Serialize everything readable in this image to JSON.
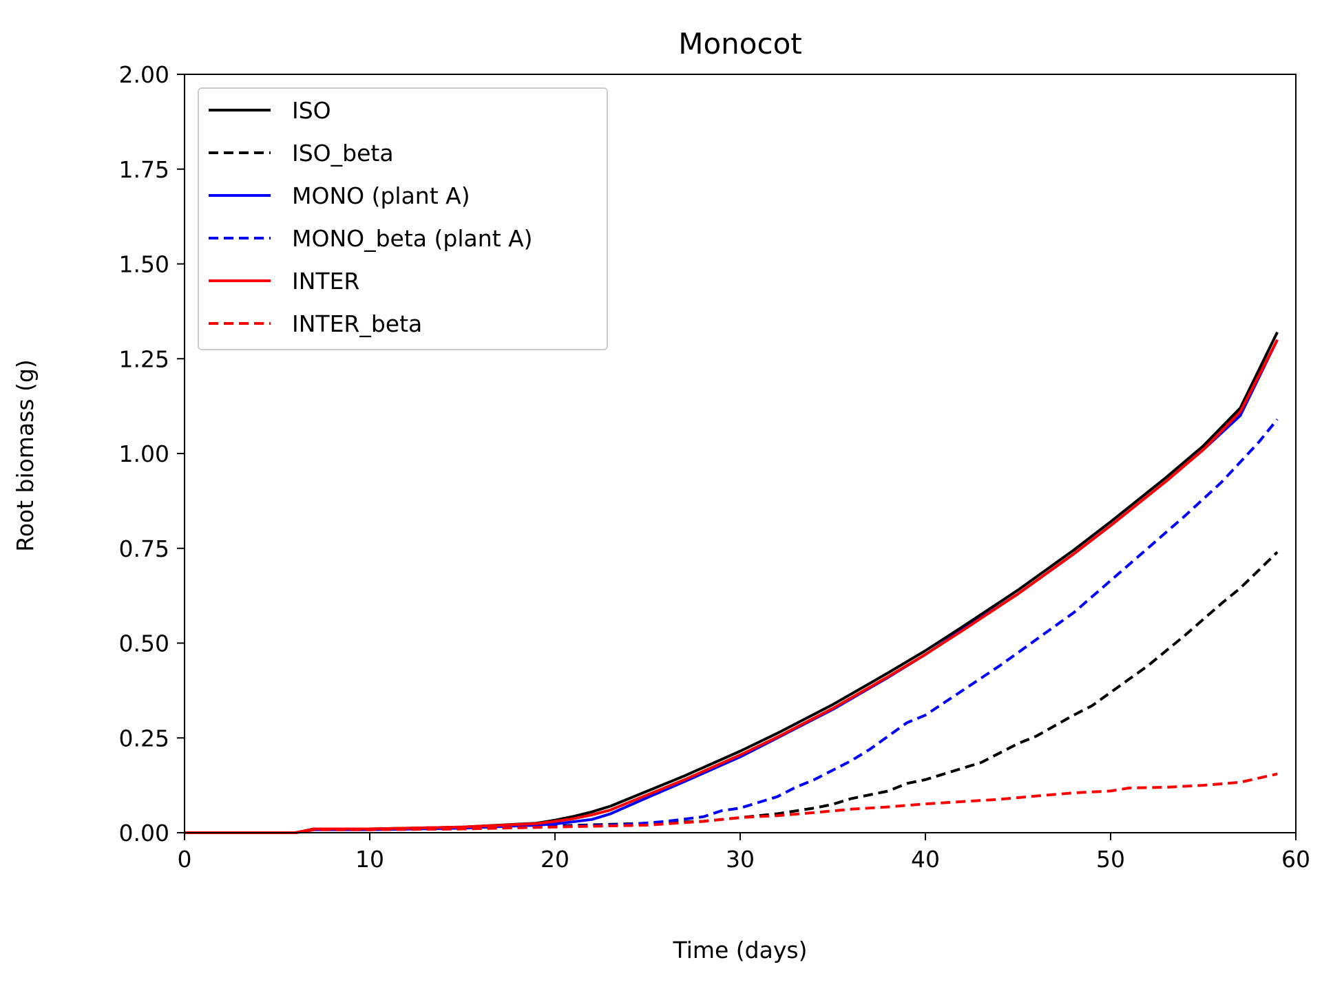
{
  "chart_data": {
    "type": "line",
    "title": "Monocot",
    "xlabel": "Time (days)",
    "ylabel": "Root biomass (g)",
    "xlim": [
      0,
      60
    ],
    "ylim": [
      0,
      2.0
    ],
    "xticks": [
      0,
      10,
      20,
      30,
      40,
      50,
      60
    ],
    "xtick_labels": [
      "0",
      "10",
      "20",
      "30",
      "40",
      "50",
      "60"
    ],
    "yticks": [
      0,
      0.25,
      0.5,
      0.75,
      1.0,
      1.25,
      1.5,
      1.75,
      2.0
    ],
    "ytick_labels": [
      "0.00",
      "0.25",
      "0.50",
      "0.75",
      "1.00",
      "1.25",
      "1.50",
      "1.75",
      "2.00"
    ],
    "grid": false,
    "legend_position": "top-left",
    "series": [
      {
        "name": "ISO",
        "color": "#000000",
        "dash": "solid",
        "points": [
          [
            0,
            0
          ],
          [
            6,
            0
          ],
          [
            7,
            0.01
          ],
          [
            10,
            0.01
          ],
          [
            15,
            0.015
          ],
          [
            19,
            0.025
          ],
          [
            20,
            0.033
          ],
          [
            21,
            0.043
          ],
          [
            22,
            0.055
          ],
          [
            23,
            0.07
          ],
          [
            25,
            0.11
          ],
          [
            27,
            0.15
          ],
          [
            30,
            0.215
          ],
          [
            32,
            0.262
          ],
          [
            35,
            0.338
          ],
          [
            38,
            0.422
          ],
          [
            40,
            0.48
          ],
          [
            42,
            0.543
          ],
          [
            45,
            0.64
          ],
          [
            48,
            0.745
          ],
          [
            50,
            0.82
          ],
          [
            53,
            0.937
          ],
          [
            55,
            1.02
          ],
          [
            57,
            1.12
          ],
          [
            59,
            1.32
          ]
        ]
      },
      {
        "name": "ISO_beta",
        "color": "#000000",
        "dash": "dashed",
        "points": [
          [
            0,
            0
          ],
          [
            6,
            0
          ],
          [
            7,
            0.01
          ],
          [
            10,
            0.01
          ],
          [
            15,
            0.012
          ],
          [
            20,
            0.018
          ],
          [
            25,
            0.025
          ],
          [
            28,
            0.03
          ],
          [
            30,
            0.04
          ],
          [
            32,
            0.05
          ],
          [
            34,
            0.065
          ],
          [
            35,
            0.075
          ],
          [
            36,
            0.09
          ],
          [
            38,
            0.11
          ],
          [
            39,
            0.13
          ],
          [
            40,
            0.14
          ],
          [
            42,
            0.17
          ],
          [
            43,
            0.185
          ],
          [
            45,
            0.235
          ],
          [
            46,
            0.255
          ],
          [
            48,
            0.31
          ],
          [
            49,
            0.335
          ],
          [
            50,
            0.37
          ],
          [
            52,
            0.44
          ],
          [
            54,
            0.52
          ],
          [
            56,
            0.605
          ],
          [
            57,
            0.645
          ],
          [
            59,
            0.74
          ]
        ]
      },
      {
        "name": "MONO (plant A)",
        "color": "#0000ff",
        "dash": "solid",
        "points": [
          [
            0,
            0
          ],
          [
            6,
            0
          ],
          [
            7,
            0.008
          ],
          [
            10,
            0.008
          ],
          [
            15,
            0.012
          ],
          [
            19,
            0.02
          ],
          [
            20,
            0.023
          ],
          [
            22,
            0.035
          ],
          [
            23,
            0.05
          ],
          [
            25,
            0.093
          ],
          [
            27,
            0.135
          ],
          [
            30,
            0.2
          ],
          [
            32,
            0.25
          ],
          [
            35,
            0.325
          ],
          [
            38,
            0.41
          ],
          [
            40,
            0.47
          ],
          [
            42,
            0.535
          ],
          [
            45,
            0.63
          ],
          [
            48,
            0.735
          ],
          [
            50,
            0.81
          ],
          [
            53,
            0.927
          ],
          [
            55,
            1.01
          ],
          [
            57,
            1.1
          ],
          [
            59,
            1.3
          ]
        ]
      },
      {
        "name": "MONO_beta (plant A)",
        "color": "#0000ff",
        "dash": "dashed",
        "points": [
          [
            0,
            0
          ],
          [
            6,
            0
          ],
          [
            7,
            0.008
          ],
          [
            10,
            0.008
          ],
          [
            15,
            0.01
          ],
          [
            20,
            0.016
          ],
          [
            24,
            0.022
          ],
          [
            26,
            0.03
          ],
          [
            28,
            0.042
          ],
          [
            29,
            0.058
          ],
          [
            30,
            0.065
          ],
          [
            31,
            0.08
          ],
          [
            32,
            0.095
          ],
          [
            33,
            0.12
          ],
          [
            34,
            0.14
          ],
          [
            35,
            0.165
          ],
          [
            36,
            0.19
          ],
          [
            37,
            0.22
          ],
          [
            38,
            0.255
          ],
          [
            39,
            0.29
          ],
          [
            40,
            0.31
          ],
          [
            42,
            0.375
          ],
          [
            44,
            0.44
          ],
          [
            46,
            0.51
          ],
          [
            48,
            0.58
          ],
          [
            50,
            0.665
          ],
          [
            52,
            0.75
          ],
          [
            54,
            0.835
          ],
          [
            56,
            0.925
          ],
          [
            58,
            1.03
          ],
          [
            59,
            1.09
          ]
        ]
      },
      {
        "name": "INTER",
        "color": "#ff0000",
        "dash": "solid",
        "points": [
          [
            0,
            0
          ],
          [
            6,
            0
          ],
          [
            7,
            0.01
          ],
          [
            10,
            0.01
          ],
          [
            15,
            0.015
          ],
          [
            19,
            0.024
          ],
          [
            20,
            0.03
          ],
          [
            21,
            0.037
          ],
          [
            22,
            0.047
          ],
          [
            23,
            0.06
          ],
          [
            25,
            0.1
          ],
          [
            27,
            0.14
          ],
          [
            30,
            0.205
          ],
          [
            32,
            0.252
          ],
          [
            35,
            0.328
          ],
          [
            38,
            0.412
          ],
          [
            40,
            0.47
          ],
          [
            42,
            0.533
          ],
          [
            45,
            0.63
          ],
          [
            48,
            0.735
          ],
          [
            50,
            0.81
          ],
          [
            53,
            0.927
          ],
          [
            55,
            1.01
          ],
          [
            57,
            1.11
          ],
          [
            59,
            1.3
          ]
        ]
      },
      {
        "name": "INTER_beta",
        "color": "#ff0000",
        "dash": "dashed",
        "points": [
          [
            0,
            0
          ],
          [
            6,
            0
          ],
          [
            7,
            0.008
          ],
          [
            10,
            0.008
          ],
          [
            15,
            0.01
          ],
          [
            20,
            0.015
          ],
          [
            25,
            0.02
          ],
          [
            28,
            0.03
          ],
          [
            30,
            0.04
          ],
          [
            32,
            0.045
          ],
          [
            34,
            0.053
          ],
          [
            36,
            0.062
          ],
          [
            38,
            0.068
          ],
          [
            40,
            0.076
          ],
          [
            42,
            0.082
          ],
          [
            44,
            0.088
          ],
          [
            46,
            0.097
          ],
          [
            48,
            0.105
          ],
          [
            50,
            0.11
          ],
          [
            51,
            0.118
          ],
          [
            53,
            0.12
          ],
          [
            55,
            0.125
          ],
          [
            57,
            0.133
          ],
          [
            59,
            0.155
          ]
        ]
      }
    ]
  }
}
